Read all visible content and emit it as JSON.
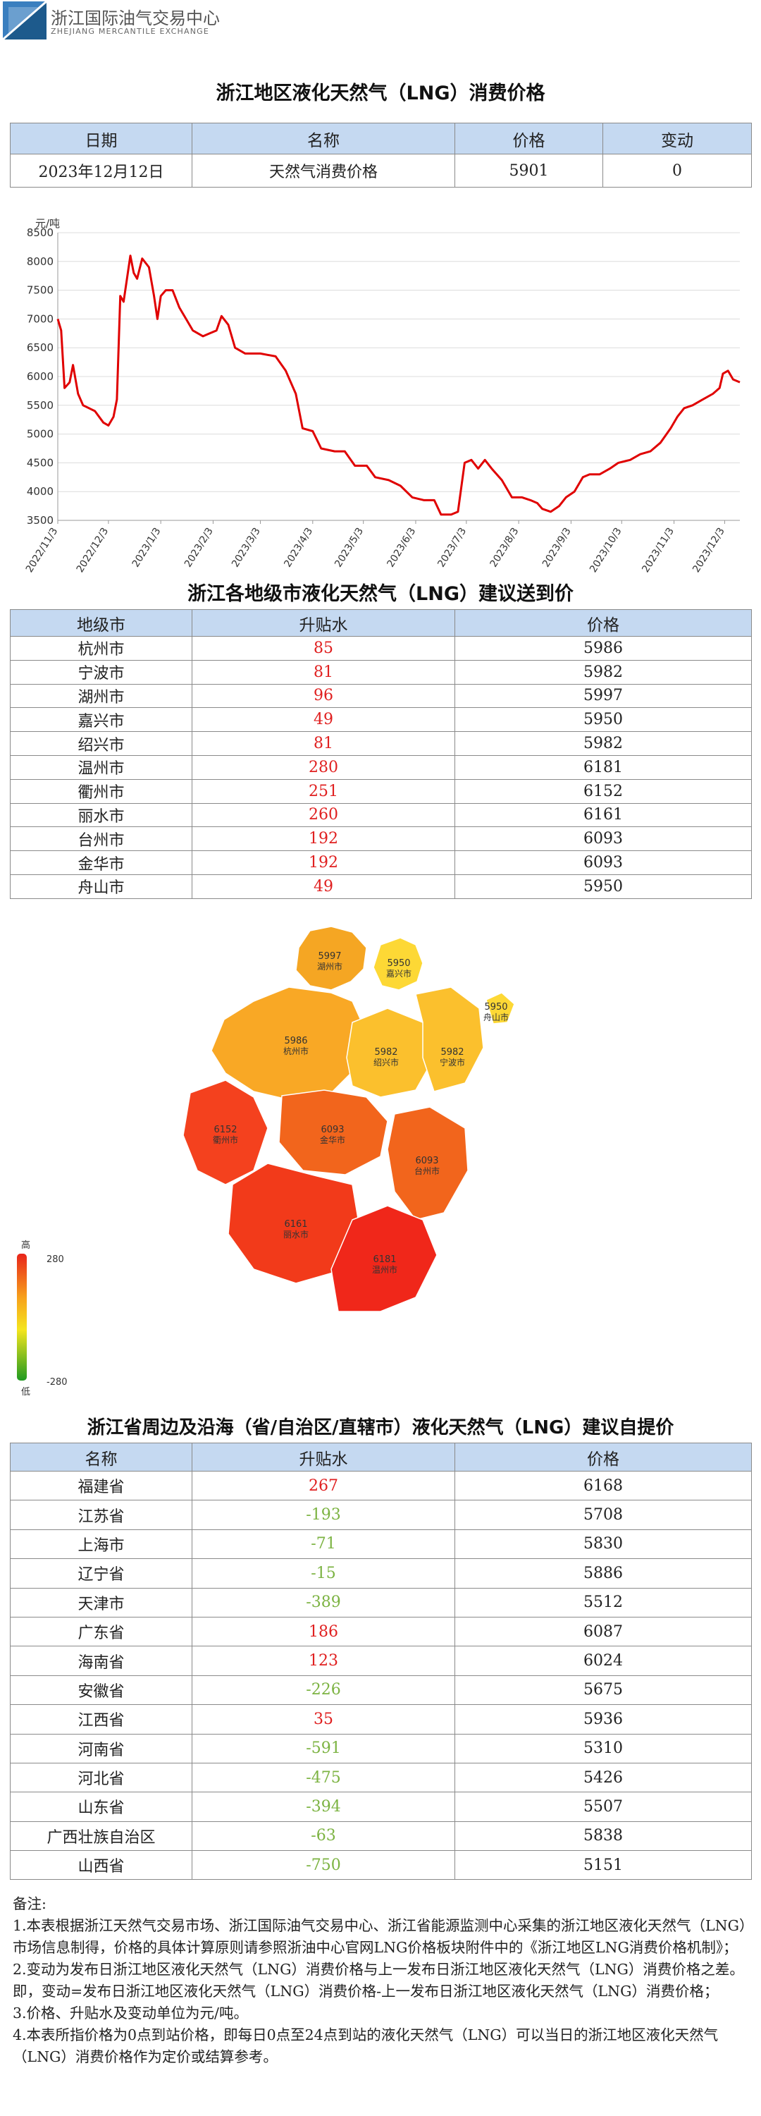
{
  "header": {
    "org_cn": "浙江国际油气交易中心",
    "org_en": "ZHEJIANG MERCANTILE EXCHANGE"
  },
  "section1": {
    "title": "浙江地区液化天然气（LNG）消费价格",
    "headers": [
      "日期",
      "名称",
      "价格",
      "变动"
    ],
    "row": [
      "2023年12月12日",
      "天然气消费价格",
      "5901",
      "0"
    ]
  },
  "chart_data": {
    "type": "line",
    "ylabel": "元/吨",
    "ylim": [
      3500,
      8500
    ],
    "yticks": [
      3500,
      4000,
      4500,
      5000,
      5500,
      6000,
      6500,
      7000,
      7500,
      8000,
      8500
    ],
    "xlim": [
      "2022-11-03",
      "2023-12-12"
    ],
    "xticks": [
      "2022/11/3",
      "2022/12/3",
      "2023/1/3",
      "2023/2/3",
      "2023/3/3",
      "2023/4/3",
      "2023/5/3",
      "2023/6/3",
      "2023/7/3",
      "2023/8/3",
      "2023/9/3",
      "2023/10/3",
      "2023/11/3",
      "2023/12/3"
    ],
    "line_color": "#e00000",
    "points": [
      [
        "2022-11-03",
        7000
      ],
      [
        "2022-11-05",
        6800
      ],
      [
        "2022-11-07",
        5800
      ],
      [
        "2022-11-10",
        5900
      ],
      [
        "2022-11-12",
        6200
      ],
      [
        "2022-11-15",
        5700
      ],
      [
        "2022-11-18",
        5500
      ],
      [
        "2022-11-25",
        5400
      ],
      [
        "2022-11-30",
        5200
      ],
      [
        "2022-12-03",
        5150
      ],
      [
        "2022-12-06",
        5300
      ],
      [
        "2022-12-08",
        5600
      ],
      [
        "2022-12-10",
        7400
      ],
      [
        "2022-12-12",
        7300
      ],
      [
        "2022-12-14",
        7700
      ],
      [
        "2022-12-16",
        8100
      ],
      [
        "2022-12-18",
        7800
      ],
      [
        "2022-12-20",
        7700
      ],
      [
        "2022-12-23",
        8050
      ],
      [
        "2022-12-27",
        7900
      ],
      [
        "2022-12-30",
        7400
      ],
      [
        "2023-01-01",
        7000
      ],
      [
        "2023-01-03",
        7400
      ],
      [
        "2023-01-06",
        7500
      ],
      [
        "2023-01-10",
        7500
      ],
      [
        "2023-01-14",
        7200
      ],
      [
        "2023-01-18",
        7000
      ],
      [
        "2023-01-22",
        6800
      ],
      [
        "2023-01-28",
        6700
      ],
      [
        "2023-02-01",
        6750
      ],
      [
        "2023-02-05",
        6800
      ],
      [
        "2023-02-08",
        7050
      ],
      [
        "2023-02-12",
        6900
      ],
      [
        "2023-02-16",
        6500
      ],
      [
        "2023-02-22",
        6400
      ],
      [
        "2023-03-03",
        6400
      ],
      [
        "2023-03-12",
        6350
      ],
      [
        "2023-03-18",
        6100
      ],
      [
        "2023-03-24",
        5700
      ],
      [
        "2023-03-28",
        5100
      ],
      [
        "2023-04-03",
        5050
      ],
      [
        "2023-04-08",
        4750
      ],
      [
        "2023-04-16",
        4700
      ],
      [
        "2023-04-22",
        4700
      ],
      [
        "2023-04-28",
        4450
      ],
      [
        "2023-05-05",
        4450
      ],
      [
        "2023-05-10",
        4250
      ],
      [
        "2023-05-18",
        4200
      ],
      [
        "2023-05-25",
        4100
      ],
      [
        "2023-06-01",
        3900
      ],
      [
        "2023-06-08",
        3850
      ],
      [
        "2023-06-14",
        3850
      ],
      [
        "2023-06-18",
        3600
      ],
      [
        "2023-06-24",
        3600
      ],
      [
        "2023-06-28",
        3650
      ],
      [
        "2023-07-02",
        4500
      ],
      [
        "2023-07-06",
        4550
      ],
      [
        "2023-07-10",
        4400
      ],
      [
        "2023-07-14",
        4550
      ],
      [
        "2023-07-18",
        4400
      ],
      [
        "2023-07-24",
        4200
      ],
      [
        "2023-07-30",
        3900
      ],
      [
        "2023-08-05",
        3900
      ],
      [
        "2023-08-10",
        3850
      ],
      [
        "2023-08-14",
        3800
      ],
      [
        "2023-08-17",
        3700
      ],
      [
        "2023-08-22",
        3650
      ],
      [
        "2023-08-27",
        3750
      ],
      [
        "2023-08-31",
        3900
      ],
      [
        "2023-09-05",
        4000
      ],
      [
        "2023-09-10",
        4250
      ],
      [
        "2023-09-14",
        4300
      ],
      [
        "2023-09-20",
        4300
      ],
      [
        "2023-09-26",
        4400
      ],
      [
        "2023-10-01",
        4500
      ],
      [
        "2023-10-08",
        4550
      ],
      [
        "2023-10-14",
        4650
      ],
      [
        "2023-10-20",
        4700
      ],
      [
        "2023-10-26",
        4850
      ],
      [
        "2023-11-01",
        5100
      ],
      [
        "2023-11-05",
        5300
      ],
      [
        "2023-11-09",
        5450
      ],
      [
        "2023-11-14",
        5500
      ],
      [
        "2023-11-20",
        5600
      ],
      [
        "2023-11-26",
        5700
      ],
      [
        "2023-11-30",
        5800
      ],
      [
        "2023-12-02",
        6050
      ],
      [
        "2023-12-05",
        6100
      ],
      [
        "2023-12-08",
        5950
      ],
      [
        "2023-12-12",
        5901
      ]
    ]
  },
  "section2": {
    "title": "浙江各地级市液化天然气（LNG）建议送到价",
    "headers": [
      "地级市",
      "升贴水",
      "价格"
    ],
    "rows": [
      [
        "杭州市",
        "85",
        "5986"
      ],
      [
        "宁波市",
        "81",
        "5982"
      ],
      [
        "湖州市",
        "96",
        "5997"
      ],
      [
        "嘉兴市",
        "49",
        "5950"
      ],
      [
        "绍兴市",
        "81",
        "5982"
      ],
      [
        "温州市",
        "280",
        "6181"
      ],
      [
        "衢州市",
        "251",
        "6152"
      ],
      [
        "丽水市",
        "260",
        "6161"
      ],
      [
        "台州市",
        "192",
        "6093"
      ],
      [
        "金华市",
        "192",
        "6093"
      ],
      [
        "舟山市",
        "49",
        "5950"
      ]
    ]
  },
  "map": {
    "legend": {
      "high_label": "高",
      "low_label": "低",
      "max": "280",
      "min": "-280"
    },
    "regions": [
      {
        "name": "湖州市",
        "price": "5997",
        "color": "#f5a623"
      },
      {
        "name": "嘉兴市",
        "price": "5950",
        "color": "#fdd835"
      },
      {
        "name": "杭州市",
        "price": "5986",
        "color": "#f9a825"
      },
      {
        "name": "绍兴市",
        "price": "5982",
        "color": "#fbc02d"
      },
      {
        "name": "宁波市",
        "price": "5982",
        "color": "#fbc02d"
      },
      {
        "name": "舟山市",
        "price": "5950",
        "color": "#fdd835"
      },
      {
        "name": "衢州市",
        "price": "6152",
        "color": "#f4411e"
      },
      {
        "name": "金华市",
        "price": "6093",
        "color": "#f2651c"
      },
      {
        "name": "台州市",
        "price": "6093",
        "color": "#f2651c"
      },
      {
        "name": "丽水市",
        "price": "6161",
        "color": "#f23a1a"
      },
      {
        "name": "温州市",
        "price": "6181",
        "color": "#f0271a"
      }
    ]
  },
  "section3": {
    "title": "浙江省周边及沿海（省/自治区/直辖市）液化天然气（LNG）建议自提价",
    "headers": [
      "名称",
      "升贴水",
      "价格"
    ],
    "rows": [
      [
        "福建省",
        "267",
        "6168"
      ],
      [
        "江苏省",
        "-193",
        "5708"
      ],
      [
        "上海市",
        "-71",
        "5830"
      ],
      [
        "辽宁省",
        "-15",
        "5886"
      ],
      [
        "天津市",
        "-389",
        "5512"
      ],
      [
        "广东省",
        "186",
        "6087"
      ],
      [
        "海南省",
        "123",
        "6024"
      ],
      [
        "安徽省",
        "-226",
        "5675"
      ],
      [
        "江西省",
        "35",
        "5936"
      ],
      [
        "河南省",
        "-591",
        "5310"
      ],
      [
        "河北省",
        "-475",
        "5426"
      ],
      [
        "山东省",
        "-394",
        "5507"
      ],
      [
        "广西壮族自治区",
        "-63",
        "5838"
      ],
      [
        "山西省",
        "-750",
        "5151"
      ]
    ]
  },
  "notes": [
    "备注:",
    "1.本表根据浙江天然气交易市场、浙江国际油气交易中心、浙江省能源监测中心采集的浙江地区液化天然气（LNG）市场信息制得，价格的具体计算原则请参照浙油中心官网LNG价格板块附件中的《浙江地区LNG消费价格机制》；",
    "2.变动为发布日浙江地区液化天然气（LNG）消费价格与上一发布日浙江地区液化天然气（LNG）消费价格之差。即，变动=发布日浙江地区液化天然气（LNG）消费价格-上一发布日浙江地区液化天然气（LNG）消费价格；",
    "3.价格、升贴水及变动单位为元/吨。",
    "4.本表所指价格为0点到站价格，即每日0点至24点到站的液化天然气（LNG）可以当日的浙江地区液化天然气（LNG）消费价格作为定价或结算参考。"
  ]
}
